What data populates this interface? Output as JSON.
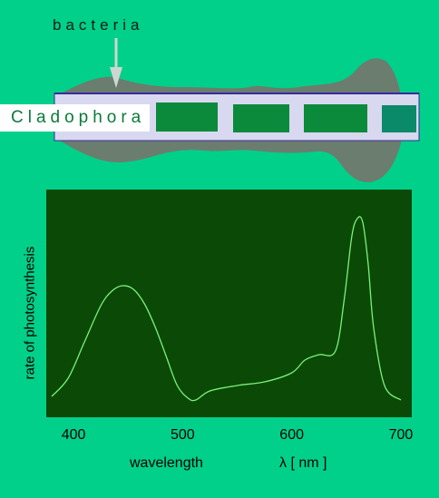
{
  "labels": {
    "bacteria": "bacteria",
    "cladophora": "Cladophora"
  },
  "colors": {
    "background": "#00d08a",
    "bacteria_fill": "#6b7d6e",
    "filament": "#d8d8f0",
    "chloroplast": "#0b8a3c",
    "chloroplast_last": "#0a8a68",
    "plot_bg": "#0a4a06",
    "curve": "#7cf07c"
  },
  "chart_data": {
    "type": "line",
    "title": "",
    "xlabel": "wavelength",
    "x_unit": "λ [ nm ]",
    "ylabel": "rate of photosynthesis",
    "xlim": [
      375,
      710
    ],
    "x_ticks": [
      400,
      500,
      600,
      700
    ],
    "y_ticks": [],
    "grid": false,
    "series": [
      {
        "x": [
          380,
          395,
          410,
          425,
          435,
          445,
          455,
          465,
          475,
          485,
          495,
          505,
          512,
          525,
          550,
          575,
          600,
          612,
          625,
          640,
          648,
          655,
          660,
          665,
          670,
          675,
          685,
          700
        ],
        "y": [
          0.02,
          0.12,
          0.32,
          0.52,
          0.6,
          0.63,
          0.61,
          0.53,
          0.4,
          0.24,
          0.08,
          0.01,
          0.0,
          0.05,
          0.08,
          0.1,
          0.15,
          0.22,
          0.25,
          0.27,
          0.55,
          0.9,
          1.0,
          0.98,
          0.75,
          0.4,
          0.08,
          0.0
        ]
      }
    ]
  }
}
